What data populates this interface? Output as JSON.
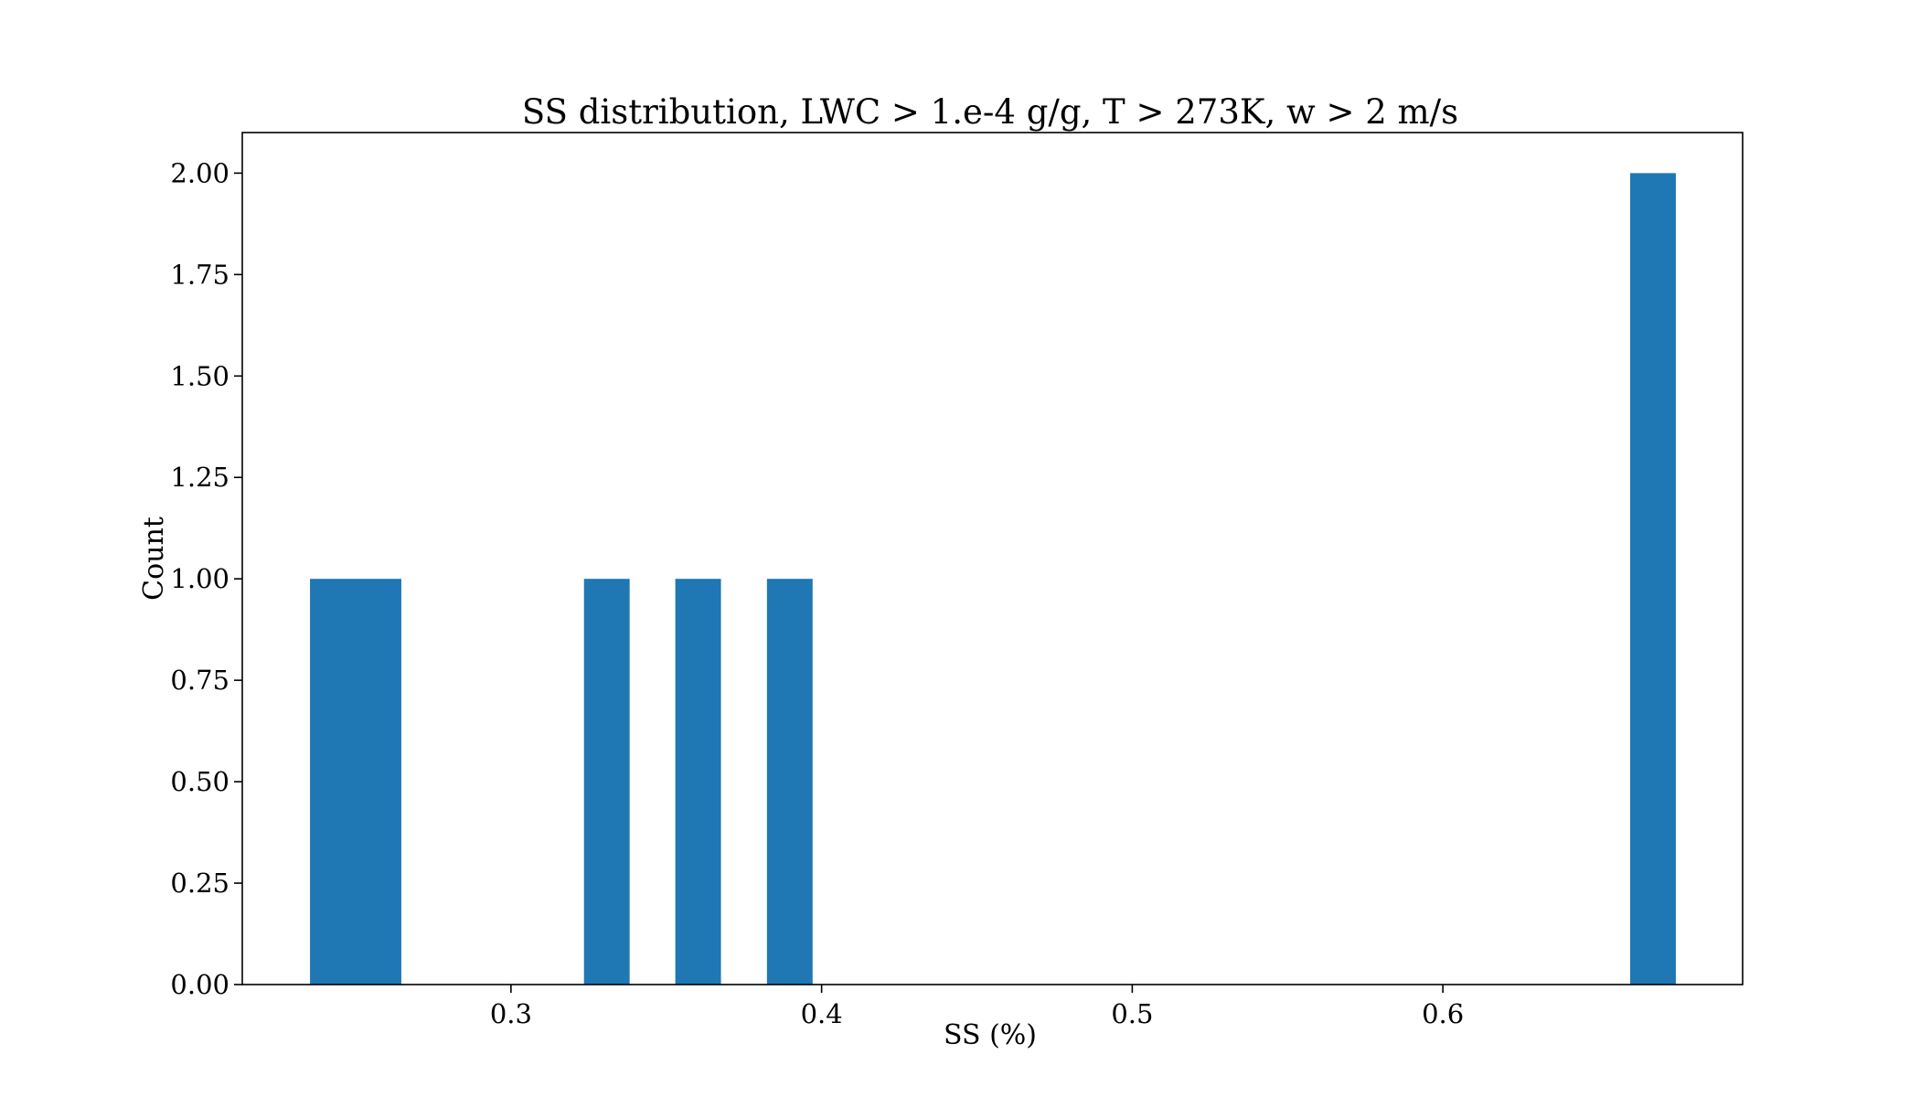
{
  "chart_data": {
    "type": "bar",
    "title": "SS distribution, LWC > 1.e-4 g/g, T > 273K, w > 2 m/s",
    "xlabel": "SS (%)",
    "ylabel": "Count",
    "bar_color": "#1f77b4",
    "xlim": [
      0.2135,
      0.6965
    ],
    "ylim": [
      0,
      2.1
    ],
    "xticks": [
      0.3,
      0.4,
      0.5,
      0.6
    ],
    "xtick_labels": [
      "0.3",
      "0.4",
      "0.5",
      "0.6"
    ],
    "yticks": [
      0,
      0.25,
      0.5,
      0.75,
      1.0,
      1.25,
      1.5,
      1.75,
      2.0
    ],
    "ytick_labels": [
      "0.00",
      "0.25",
      "0.50",
      "0.75",
      "1.00",
      "1.25",
      "1.50",
      "1.75",
      "2.00"
    ],
    "bins": [
      {
        "x0": 0.2353,
        "x1": 0.25,
        "count": 1
      },
      {
        "x0": 0.25,
        "x1": 0.2647,
        "count": 1
      },
      {
        "x0": 0.3235,
        "x1": 0.3382,
        "count": 1
      },
      {
        "x0": 0.3529,
        "x1": 0.3676,
        "count": 1
      },
      {
        "x0": 0.3824,
        "x1": 0.3971,
        "count": 1
      },
      {
        "x0": 0.6603,
        "x1": 0.675,
        "count": 2
      }
    ],
    "grid": false,
    "legend": "none"
  }
}
